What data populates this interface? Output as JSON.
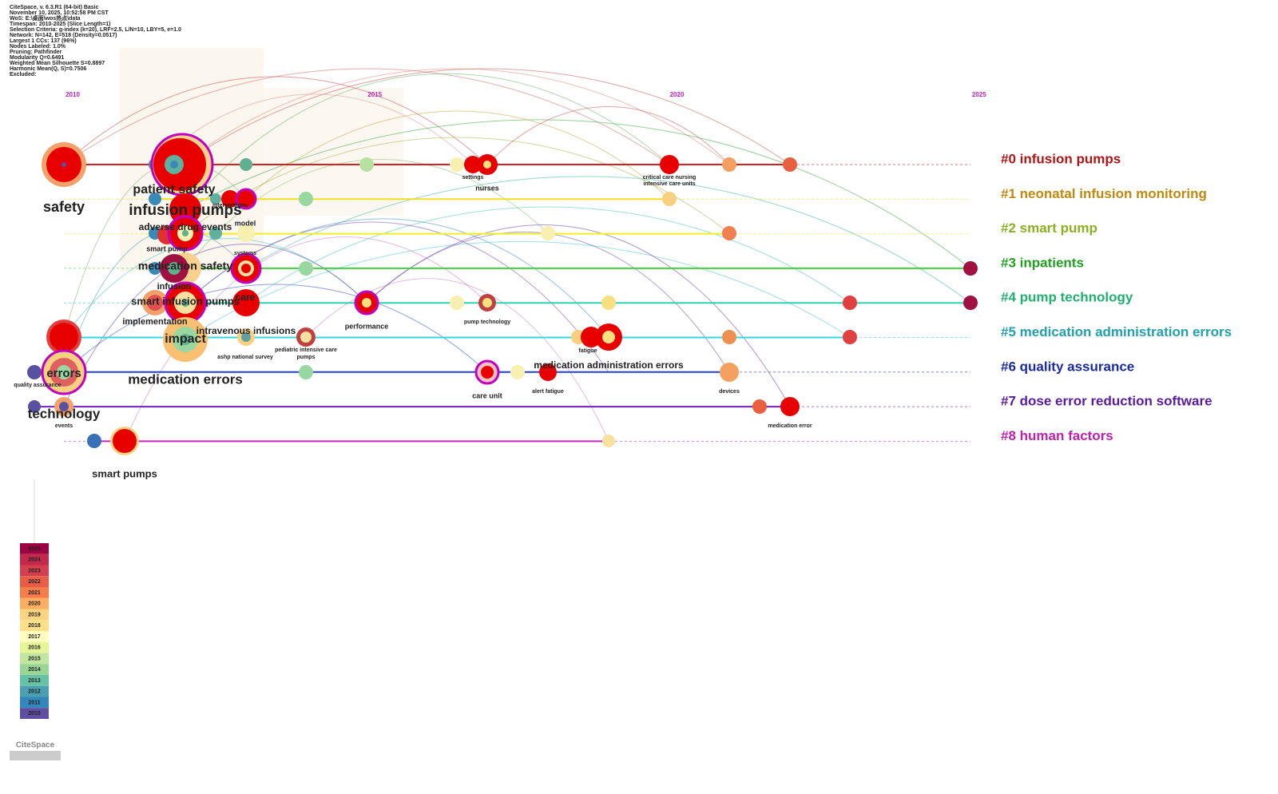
{
  "header": {
    "lines": [
      "CiteSpace, v. 6.3.R1 (64-bit) Basic",
      "November 10, 2025, 10:52:58 PM CST",
      "WoS: E:\\桌面\\wos热点\\data",
      "Timespan: 2010-2025 (Slice Length=1)",
      "Selection Criteria: g-index (k=20), LRF=2.5, L/N=10, LBY=5, e=1.0",
      "Network: N=142, E=518 (Density=0.0517)",
      "Largest 1 CCs: 137 (96%)",
      "Nodes Labeled: 1.0%",
      "Pruning: Pathfinder",
      "Modularity Q=0.6491",
      "Weighted Mean Silhouette S=0.8897",
      "Harmonic Mean(Q, S)=0.7506",
      "Excluded:"
    ]
  },
  "years": [
    2010,
    2015,
    2020,
    2025
  ],
  "clusters": [
    {
      "label": "#0 infusion pumps",
      "color": "#b01515",
      "line": "#d42020"
    },
    {
      "label": "#1 neonatal infusion monitoring",
      "color": "#c08a10",
      "line": "#f0e020"
    },
    {
      "label": "#2 smart pump",
      "color": "#8ab020",
      "line": "#f0f020"
    },
    {
      "label": "#3 inpatients",
      "color": "#20a020",
      "line": "#40d040"
    },
    {
      "label": "#4 pump technology",
      "color": "#20b070",
      "line": "#30d0b0"
    },
    {
      "label": "#5 medication administration errors",
      "color": "#20a0b0",
      "line": "#30d8e0"
    },
    {
      "label": "#6 quality assurance",
      "color": "#1a2aa0",
      "line": "#2040d0"
    },
    {
      "label": "#7 dose error reduction software",
      "color": "#5a1aa0",
      "line": "#7020c0"
    },
    {
      "label": "#8 human factors",
      "color": "#c020b0",
      "line": "#d020c0"
    }
  ],
  "labels": [
    "safety",
    "patient safety",
    "infusion pumps",
    "interventions",
    "model",
    "adverse drug events",
    "smart pump",
    "systems",
    "medication safety",
    "infusion",
    "smart infusion pumps",
    "care",
    "implementation",
    "intravenous infusions",
    "impact",
    "ashp national survey",
    "pediatric intensive care",
    "pumps",
    "errors",
    "quality assurance",
    "medication errors",
    "technology",
    "events",
    "smart pumps",
    "settings",
    "nurses",
    "critical care nursing",
    "intensive care units",
    "performance",
    "pump technology",
    "fatigue",
    "medication administration errors",
    "care unit",
    "alert fatigue",
    "devices",
    "medication error"
  ],
  "legend": [
    {
      "label": "2025",
      "color": "#9e0142"
    },
    {
      "label": "2024",
      "color": "#c2294a"
    },
    {
      "label": "2023",
      "color": "#d53e4f"
    },
    {
      "label": "2022",
      "color": "#e95d47"
    },
    {
      "label": "2021",
      "color": "#f67c4a"
    },
    {
      "label": "2020",
      "color": "#fdae61"
    },
    {
      "label": "2019",
      "color": "#fed481"
    },
    {
      "label": "2018",
      "color": "#fee08b"
    },
    {
      "label": "2017",
      "color": "#fffebe"
    },
    {
      "label": "2016",
      "color": "#e6f598"
    },
    {
      "label": "2015",
      "color": "#c1e6a0"
    },
    {
      "label": "2014",
      "color": "#99d594"
    },
    {
      "label": "2013",
      "color": "#66c2a5"
    },
    {
      "label": "2012",
      "color": "#4aa0b0"
    },
    {
      "label": "2011",
      "color": "#3288bd"
    },
    {
      "label": "2010",
      "color": "#5e4fa2"
    }
  ],
  "logo": "CiteSpace"
}
